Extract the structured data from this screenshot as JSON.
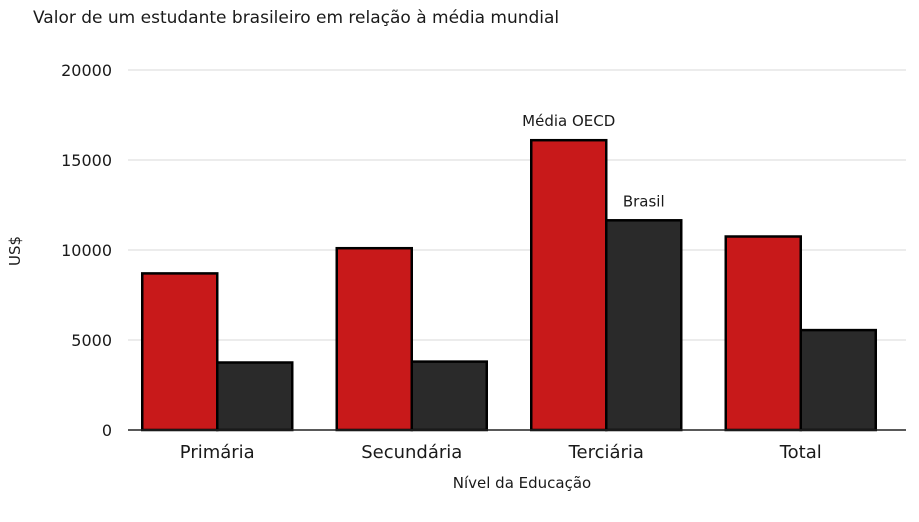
{
  "chart_data": {
    "type": "bar",
    "title": "Valor de um estudante brasileiro em relação à média mundial",
    "xlabel": "Nível da Educação",
    "ylabel": "US$",
    "ylim": [
      0,
      20000
    ],
    "yticks": [
      0,
      5000,
      10000,
      15000,
      20000
    ],
    "grid": true,
    "categories": [
      "Primária",
      "Secundária",
      "Terciária",
      "Total"
    ],
    "series": [
      {
        "name": "Média OECD",
        "color": "#c8191a",
        "values": [
          8700,
          10100,
          16100,
          10750
        ]
      },
      {
        "name": "Brasil",
        "color": "#2a2a2a",
        "values": [
          3750,
          3800,
          11650,
          5550
        ]
      }
    ],
    "annotations": [
      {
        "text": "Média OECD",
        "series": 0,
        "category": 2
      },
      {
        "text": "Brasil",
        "series": 1,
        "category": 2
      }
    ]
  }
}
